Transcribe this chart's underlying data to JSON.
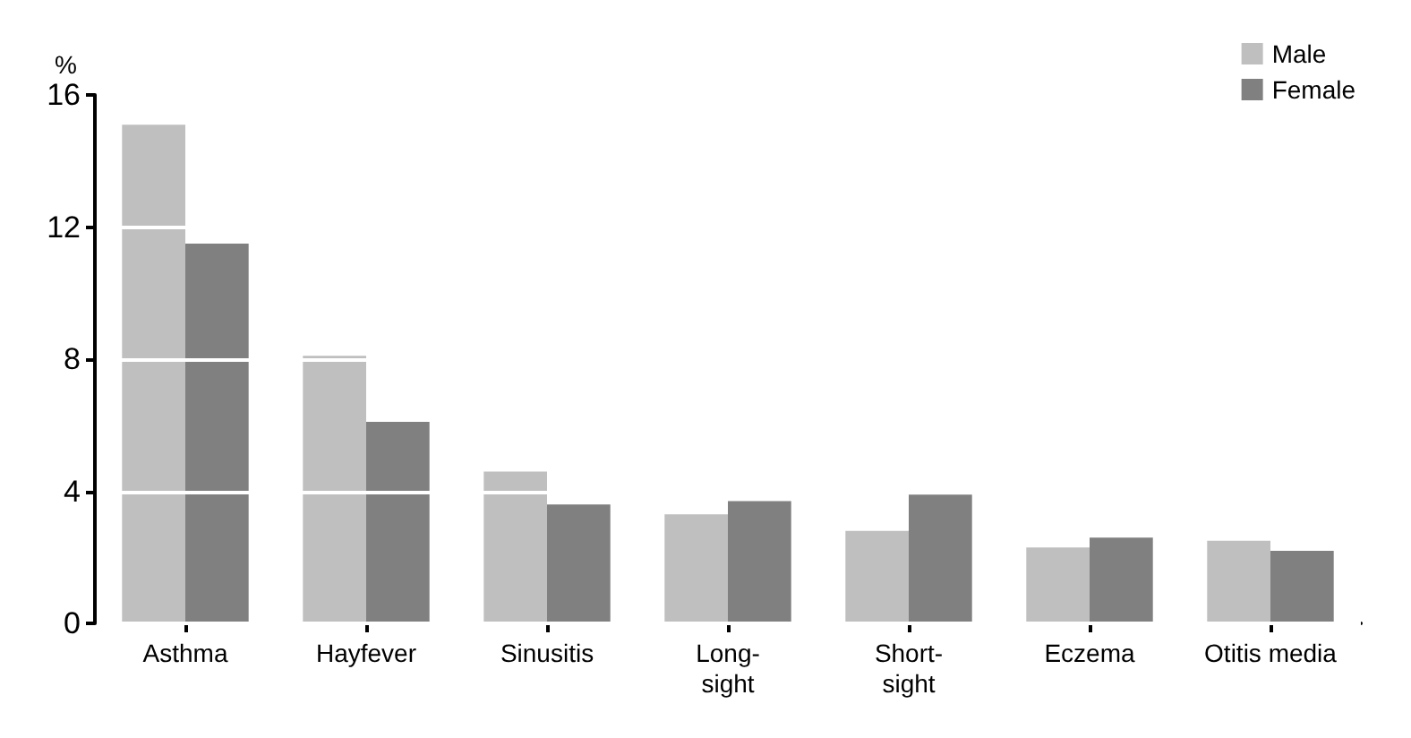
{
  "chart_data": {
    "type": "bar",
    "ylabel": "%",
    "categories": [
      "Asthma",
      "Hayfever",
      "Sinusitis",
      "Long-\nsight",
      "Short-\nsight",
      "Eczema",
      "Otitis media"
    ],
    "series": [
      {
        "name": "Male",
        "color": "#bfbfbf",
        "values": [
          15.1,
          8.1,
          4.6,
          3.3,
          2.8,
          2.3,
          2.5
        ]
      },
      {
        "name": "Female",
        "color": "#808080",
        "values": [
          11.5,
          6.1,
          3.6,
          3.7,
          3.9,
          2.6,
          2.2
        ]
      }
    ],
    "ylim": [
      0,
      16
    ],
    "yticks": [
      0,
      4,
      8,
      12,
      16
    ],
    "grid": "y",
    "legend": "top right"
  }
}
